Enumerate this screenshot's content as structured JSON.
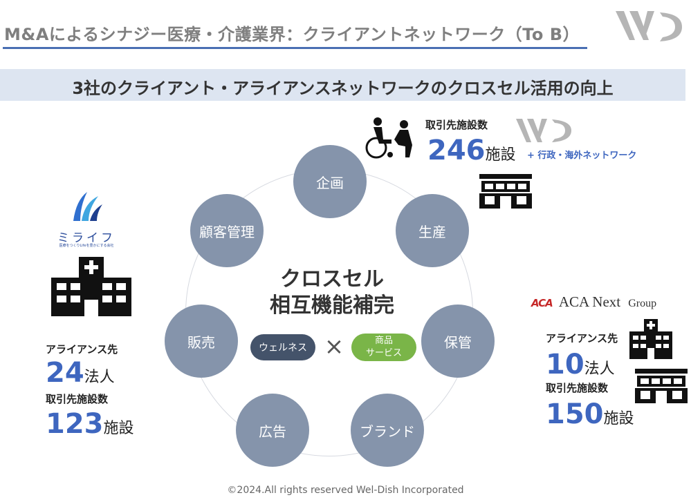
{
  "header": {
    "title": "M&Aによるシナジー医療・介護業界：クライアントネットワーク（To B）",
    "subtitle": "3社のクライアント・アライアンスネットワークのクロスセル活用の向上"
  },
  "cycle": {
    "nodes": [
      "企画",
      "生産",
      "保管",
      "ブランド",
      "広告",
      "販売",
      "顧客管理"
    ],
    "center_line1": "クロスセル",
    "center_line2": "相互機能補完",
    "pill_left": "ウェルネス",
    "pill_right_line1": "商品",
    "pill_right_line2": "サービス",
    "cross": "×"
  },
  "company_wd": {
    "label": "取引先施設数",
    "value": "246",
    "unit": "施設",
    "note": "+ 行政・海外ネットワーク"
  },
  "company_mirai": {
    "logo_text": "ミライフ",
    "logo_tagline": "医療をつくりLifeを豊かにする会社",
    "label1": "アライアンス先",
    "value1": "24",
    "unit1": "法人",
    "label2": "取引先施設数",
    "value2": "123",
    "unit2": "施設"
  },
  "company_aca": {
    "logo_mark": "ACA",
    "logo_name": "ACA Next",
    "logo_group": "Group",
    "label1": "アライアンス先",
    "value1": "10",
    "unit1": "法人",
    "label2": "取引先施設数",
    "value2": "150",
    "unit2": "施設"
  },
  "footer": {
    "text": "©2024.All rights reserved Wel-Dish Incorporated"
  },
  "colors": {
    "accent": "#3e66bf",
    "node": "#8594ab",
    "pill_dark": "#44536a",
    "pill_green": "#7ab548",
    "band": "#dde5f1"
  }
}
